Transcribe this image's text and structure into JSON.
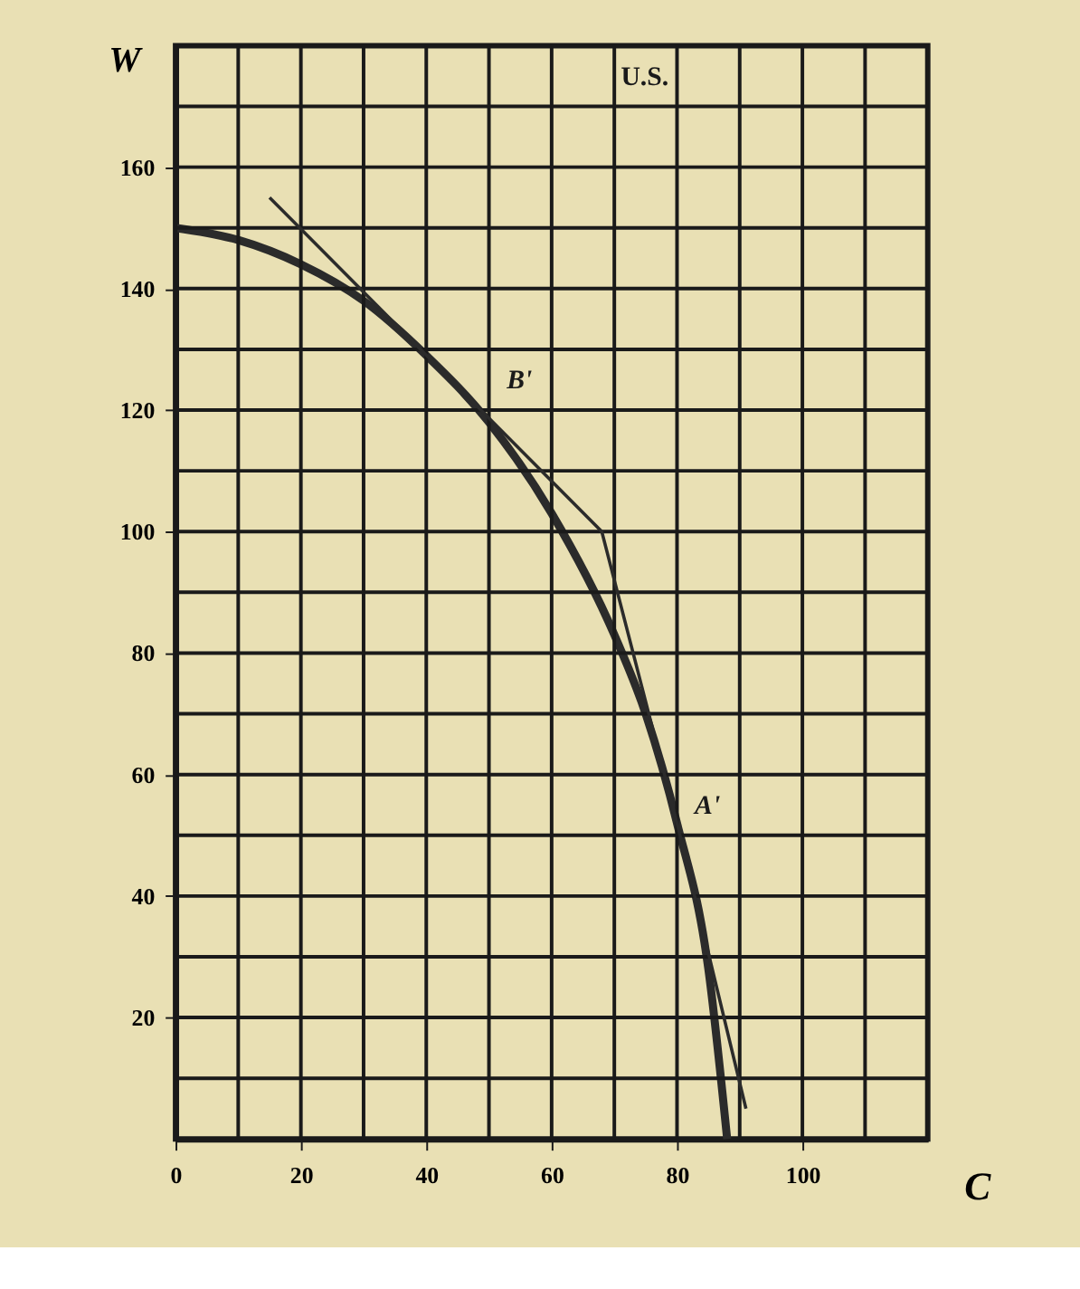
{
  "chart_data": {
    "type": "line",
    "xlabel": "C",
    "ylabel": "W",
    "x": [
      0,
      10,
      20,
      30,
      40,
      50,
      60,
      70,
      75,
      80,
      85,
      88
    ],
    "series": [
      {
        "color": "#2b2b2b",
        "values": [
          150,
          148,
          144,
          138,
          129,
          118,
          103,
          83,
          70,
          52,
          28,
          0
        ]
      },
      {
        "type": "line",
        "color": "#2b2b2b",
        "x": [
          15,
          68,
          80,
          91
        ],
        "values": [
          155,
          100,
          52,
          5
        ]
      }
    ],
    "xlim": [
      0,
      120
    ],
    "ylim": [
      0,
      180
    ],
    "xticks": [
      0,
      {
        "value": 10,
        "label": null
      },
      20,
      {
        "value": 30,
        "label": null
      },
      40,
      {
        "value": 50,
        "label": null
      },
      60,
      {
        "value": 70,
        "label": null
      },
      80,
      {
        "value": 90,
        "label": null
      },
      100,
      {
        "value": 110,
        "label": null
      }
    ],
    "yticks": [
      {
        "value": 10,
        "label": null
      },
      20,
      {
        "value": 30,
        "label": null
      },
      40,
      {
        "value": 50,
        "label": null
      },
      60,
      {
        "value": 70,
        "label": null
      },
      80,
      {
        "value": 90,
        "label": null
      },
      100,
      {
        "value": 110,
        "label": null
      },
      120,
      {
        "value": 130,
        "label": null
      },
      140,
      {
        "value": 150,
        "label": null
      },
      160,
      {
        "value": 170,
        "label": null
      }
    ],
    "grid": true,
    "marker": "none",
    "line_style": "solid",
    "annotations": [
      "U.S.",
      {
        "text": "B'",
        "x": 50,
        "y": 120
      },
      {
        "text": "A'",
        "x": 80,
        "y": 50
      }
    ]
  }
}
